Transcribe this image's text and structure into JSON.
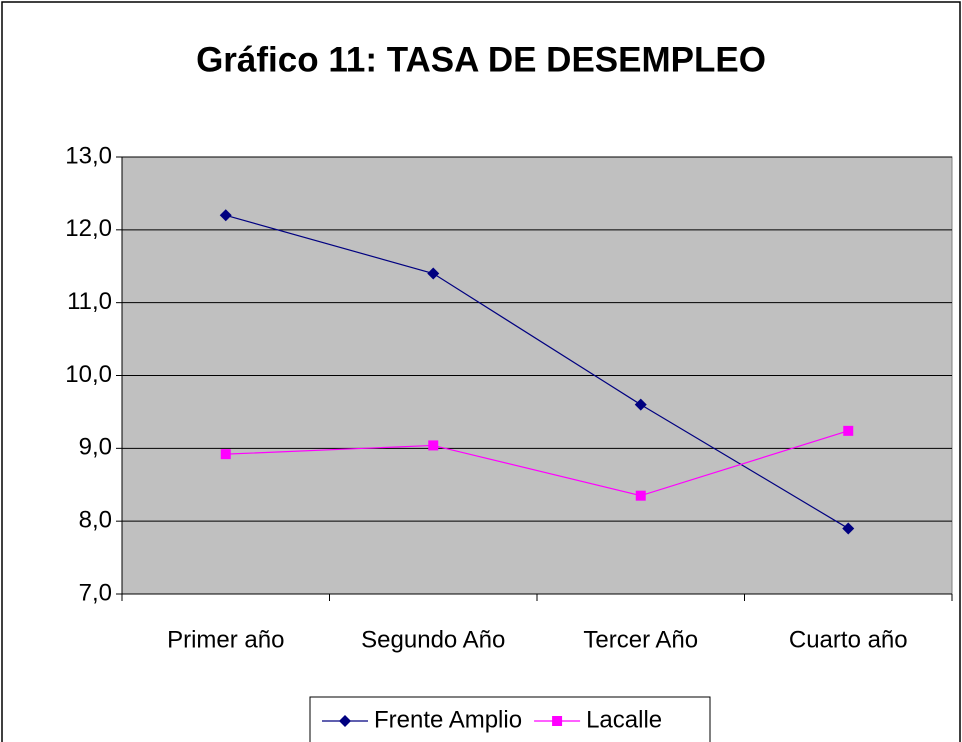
{
  "chart_data": {
    "type": "line",
    "title": "Gráfico 11: TASA DE DESEMPLEO",
    "categories": [
      "Primer año",
      "Segundo Año",
      "Tercer Año",
      "Cuarto año"
    ],
    "series": [
      {
        "name": "Frente Amplio",
        "color": "#000080",
        "marker": "diamond",
        "values": [
          12.2,
          11.4,
          9.6,
          7.9
        ]
      },
      {
        "name": "Lacalle",
        "color": "#ff00ff",
        "marker": "square",
        "values": [
          8.92,
          9.04,
          8.35,
          9.24
        ]
      }
    ],
    "ylim": [
      7,
      13
    ],
    "yticks": [
      {
        "value": 7,
        "label": "7,0"
      },
      {
        "value": 8,
        "label": "8,0"
      },
      {
        "value": 9,
        "label": "9,0"
      },
      {
        "value": 10,
        "label": "10,0"
      },
      {
        "value": 11,
        "label": "11,0"
      },
      {
        "value": 12,
        "label": "12,0"
      },
      {
        "value": 13,
        "label": "13,0"
      }
    ],
    "grid": true,
    "plot_background": "#c0c0c0",
    "legend": "bottom"
  }
}
